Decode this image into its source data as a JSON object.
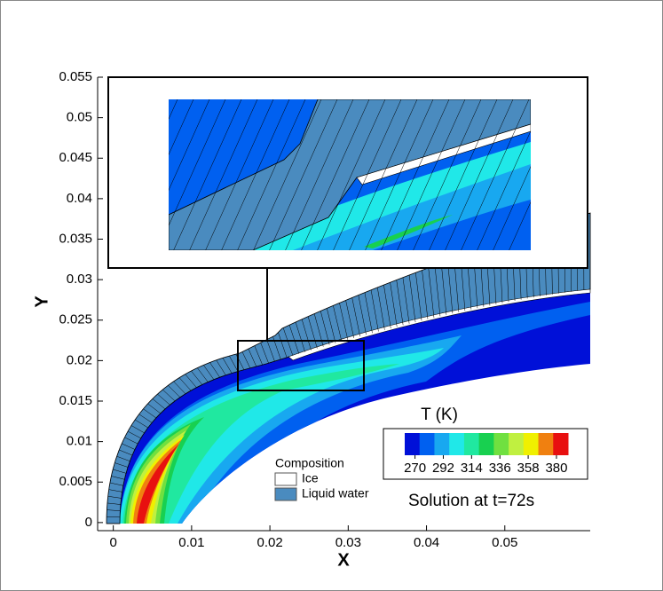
{
  "chart_data": {
    "type": "contour",
    "x_label": "X",
    "y_label": "Y",
    "xlim": [
      -0.002,
      0.06
    ],
    "ylim": [
      -0.001,
      0.055
    ],
    "xticks": [
      0,
      0.01,
      0.02,
      0.03,
      0.04,
      0.05
    ],
    "yticks": [
      0,
      0.005,
      0.01,
      0.015,
      0.02,
      0.025,
      0.03,
      0.035,
      0.04,
      0.045,
      0.05,
      0.055
    ],
    "colorbar": {
      "title": "T (K)",
      "lim": [
        262,
        389
      ],
      "ticks": [
        270,
        292,
        314,
        336,
        358,
        380
      ],
      "colors": [
        "#0010d8",
        "#0060f0",
        "#18a8f0",
        "#20e8e8",
        "#20e8a0",
        "#18d050",
        "#70e040",
        "#c0f040",
        "#f0f000",
        "#f08010",
        "#e81010"
      ]
    },
    "legend": {
      "title": "Composition",
      "items": [
        {
          "name": "Ice",
          "color": "#ffffff"
        },
        {
          "name": "Liquid water",
          "color": "#4a8bbf"
        }
      ]
    },
    "annotation": "Solution at t=72s"
  }
}
